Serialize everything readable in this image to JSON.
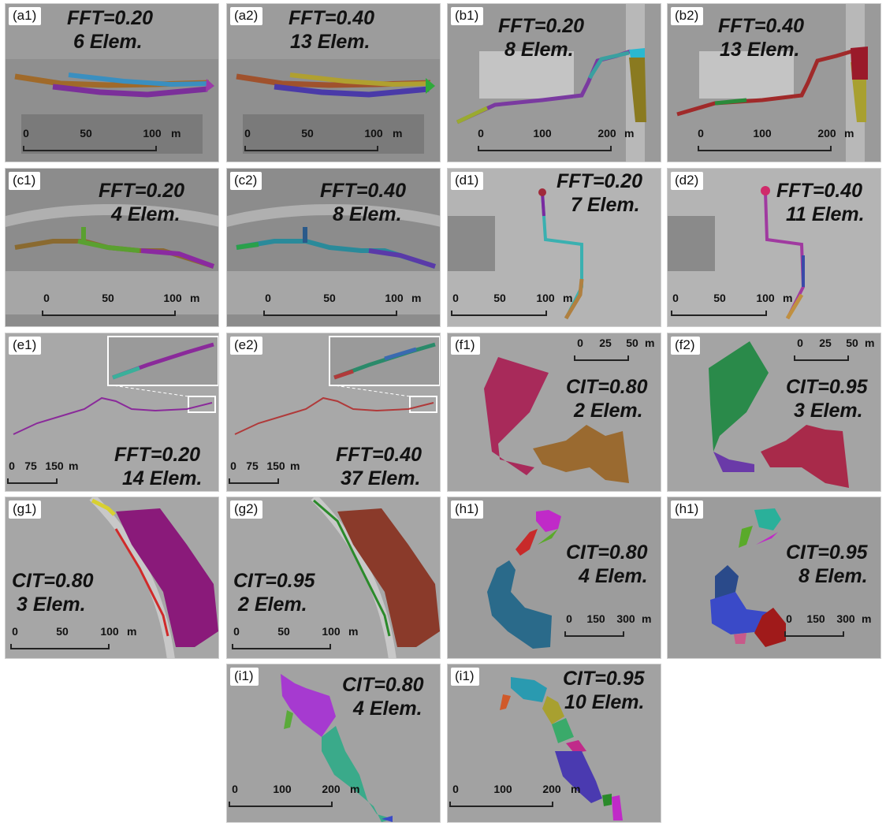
{
  "panels": [
    {
      "tag": "(a1)",
      "param": "FFT=0.20",
      "elems": "6 Elem.",
      "ticks": [
        "0",
        "50",
        "100"
      ],
      "unit": "m"
    },
    {
      "tag": "(a2)",
      "param": "FFT=0.40",
      "elems": "13 Elem.",
      "ticks": [
        "0",
        "50",
        "100"
      ],
      "unit": "m"
    },
    {
      "tag": "(b1)",
      "param": "FFT=0.20",
      "elems": "8 Elem.",
      "ticks": [
        "0",
        "100",
        "200"
      ],
      "unit": "m"
    },
    {
      "tag": "(b2)",
      "param": "FFT=0.40",
      "elems": "13 Elem.",
      "ticks": [
        "0",
        "100",
        "200"
      ],
      "unit": "m"
    },
    {
      "tag": "(c1)",
      "param": "FFT=0.20",
      "elems": "4 Elem.",
      "ticks": [
        "0",
        "50",
        "100"
      ],
      "unit": "m"
    },
    {
      "tag": "(c2)",
      "param": "FFT=0.40",
      "elems": "8 Elem.",
      "ticks": [
        "0",
        "50",
        "100"
      ],
      "unit": "m"
    },
    {
      "tag": "(d1)",
      "param": "FFT=0.20",
      "elems": "7 Elem.",
      "ticks": [
        "0",
        "50",
        "100"
      ],
      "unit": "m"
    },
    {
      "tag": "(d2)",
      "param": "FFT=0.40",
      "elems": "11 Elem.",
      "ticks": [
        "0",
        "50",
        "100"
      ],
      "unit": "m"
    },
    {
      "tag": "(e1)",
      "param": "FFT=0.20",
      "elems": "14 Elem.",
      "ticks": [
        "0",
        "75",
        "150"
      ],
      "unit": "m"
    },
    {
      "tag": "(e2)",
      "param": "FFT=0.40",
      "elems": "37 Elem.",
      "ticks": [
        "0",
        "75",
        "150"
      ],
      "unit": "m"
    },
    {
      "tag": "(f1)",
      "param": "CIT=0.80",
      "elems": "2 Elem.",
      "ticks": [
        "0",
        "25",
        "50"
      ],
      "unit": "m"
    },
    {
      "tag": "(f2)",
      "param": "CIT=0.95",
      "elems": "3 Elem.",
      "ticks": [
        "0",
        "25",
        "50"
      ],
      "unit": "m"
    },
    {
      "tag": "(g1)",
      "param": "CIT=0.80",
      "elems": "3 Elem.",
      "ticks": [
        "0",
        "50",
        "100"
      ],
      "unit": "m"
    },
    {
      "tag": "(g2)",
      "param": "CIT=0.95",
      "elems": "2 Elem.",
      "ticks": [
        "0",
        "50",
        "100"
      ],
      "unit": "m"
    },
    {
      "tag": "(h1)",
      "param": "CIT=0.80",
      "elems": "4 Elem.",
      "ticks": [
        "0",
        "150",
        "300"
      ],
      "unit": "m"
    },
    {
      "tag": "(h1)",
      "param": "CIT=0.95",
      "elems": "8 Elem.",
      "ticks": [
        "0",
        "150",
        "300"
      ],
      "unit": "m"
    },
    {
      "tag": "(i1)",
      "param": "CIT=0.80",
      "elems": "4 Elem.",
      "ticks": [
        "0",
        "100",
        "200"
      ],
      "unit": "m"
    },
    {
      "tag": "(i1)",
      "param": "CIT=0.95",
      "elems": "10 Elem.",
      "ticks": [
        "0",
        "100",
        "200"
      ],
      "unit": "m"
    }
  ]
}
